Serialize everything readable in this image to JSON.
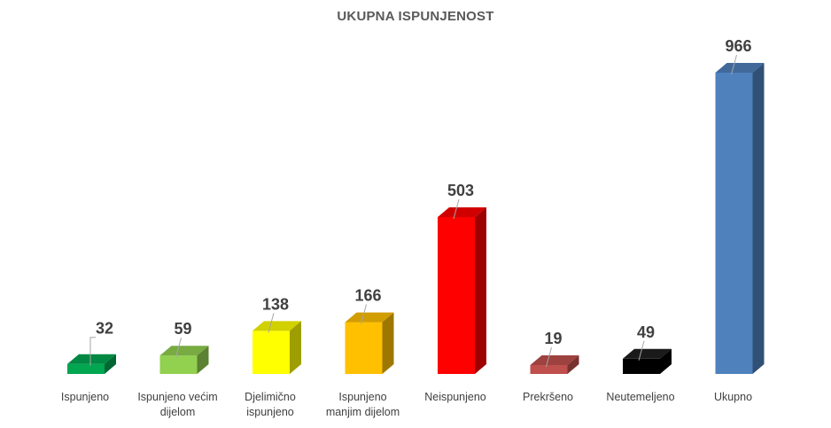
{
  "chart_data": {
    "type": "bar",
    "title": "UKUPNA ISPUNJENOST",
    "categories": [
      "Ispunjeno",
      "Ispunjeno većim dijelom",
      "Djelimično ispunjeno",
      "Ispunjeno manjim dijelom",
      "Neispunjeno",
      "Prekršeno",
      "Neutemeljeno",
      "Ukupno"
    ],
    "category_lines": [
      [
        "Ispunjeno"
      ],
      [
        "Ispunjeno većim",
        "dijelom"
      ],
      [
        "Djelimično",
        "ispunjeno"
      ],
      [
        "Ispunjeno",
        "manjim dijelom"
      ],
      [
        "Neispunjeno"
      ],
      [
        "Prekršeno"
      ],
      [
        "Neutemeljeno"
      ],
      [
        "Ukupno"
      ]
    ],
    "values": [
      32,
      59,
      138,
      166,
      503,
      19,
      49,
      966
    ],
    "data_labels": [
      "32",
      "59",
      "138",
      "166",
      "503",
      "19",
      "49",
      "966"
    ],
    "colors": [
      "#00A650",
      "#92D050",
      "#FFFF00",
      "#FFC000",
      "#FF0000",
      "#C0504D",
      "#000000",
      "#4F81BD"
    ],
    "xlabel": "",
    "ylabel": "",
    "ylim": [
      0,
      1000
    ],
    "grid": false,
    "bar_style": "3d"
  }
}
